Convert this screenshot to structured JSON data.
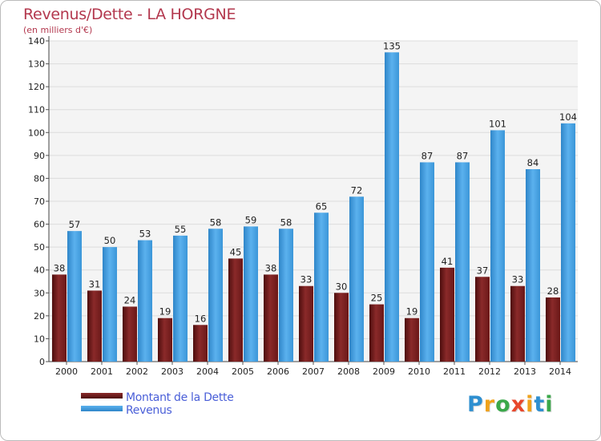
{
  "chart_data": {
    "type": "bar",
    "title": "Revenus/Dette - LA HORGNE",
    "subtitle": "(en milliers d'€)",
    "categories": [
      "2000",
      "2001",
      "2002",
      "2003",
      "2004",
      "2005",
      "2006",
      "2007",
      "2008",
      "2009",
      "2010",
      "2011",
      "2012",
      "2013",
      "2014"
    ],
    "series": [
      {
        "name": "Montant de la Dette",
        "color": "#7a1e1e",
        "values": [
          38,
          31,
          24,
          19,
          16,
          45,
          38,
          33,
          30,
          25,
          19,
          41,
          37,
          33,
          28
        ]
      },
      {
        "name": "Revenus",
        "color": "#4ea6e6",
        "values": [
          57,
          50,
          53,
          55,
          58,
          59,
          58,
          65,
          72,
          135,
          87,
          87,
          101,
          84,
          104
        ]
      }
    ],
    "ylim": [
      0,
      140
    ],
    "yticks": [
      0,
      10,
      20,
      30,
      40,
      50,
      60,
      70,
      80,
      90,
      100,
      110,
      120,
      130,
      140
    ],
    "grid": true,
    "legend": "bottom-left"
  },
  "logo": {
    "letters": [
      "P",
      "r",
      "o",
      "x",
      "i",
      "t",
      "i"
    ],
    "colors": [
      "#2e8fd0",
      "#f0a21a",
      "#3aa84a",
      "#e8472c",
      "#f0a21a",
      "#2e8fd0",
      "#3aa84a"
    ]
  }
}
